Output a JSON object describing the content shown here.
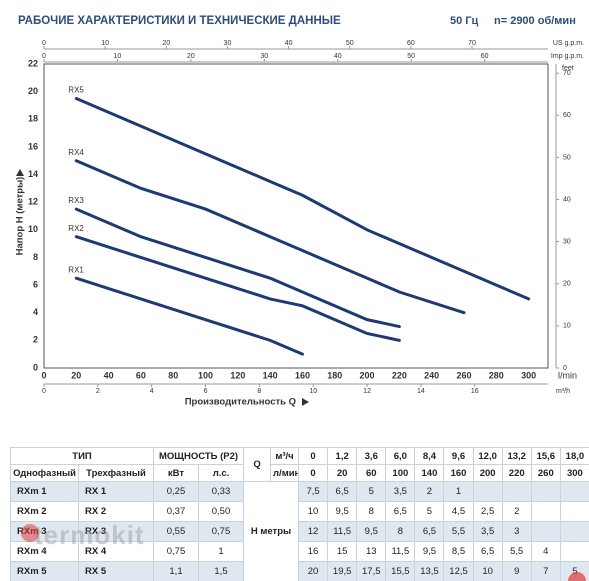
{
  "header": {
    "title": "РАБОЧИЕ ХАРАКТЕРИСТИКИ И ТЕХНИЧЕСКИЕ ДАННЫЕ",
    "frequency": "50 Гц",
    "speed": "n= 2900 об/мин"
  },
  "chart_data": {
    "type": "line",
    "y_label": "Напор H (метры)",
    "x_label": "Производительность Q",
    "x_unit": "l/min",
    "xlim": [
      0,
      312
    ],
    "xticks": [
      0,
      20,
      40,
      60,
      80,
      100,
      120,
      140,
      160,
      180,
      200,
      220,
      240,
      260,
      280,
      300
    ],
    "ylim": [
      0,
      22
    ],
    "yticks": [
      0,
      2,
      4,
      6,
      8,
      10,
      12,
      14,
      16,
      18,
      20,
      22
    ],
    "grid": true,
    "secondary_axes": [
      {
        "label": "US g.p.m.",
        "position": "top",
        "lim": [
          0,
          82.42
        ],
        "ticks": [
          0,
          10,
          20,
          30,
          40,
          50,
          60,
          70
        ]
      },
      {
        "label": "Imp g.p.m.",
        "position": "top",
        "lim": [
          0,
          68.63
        ],
        "ticks": [
          0,
          10,
          20,
          30,
          40,
          50,
          60
        ]
      },
      {
        "label": "m³/h",
        "position": "bottom",
        "lim": [
          0,
          18.72
        ],
        "ticks": [
          0,
          2,
          4,
          6,
          8,
          10,
          12,
          14,
          16
        ]
      },
      {
        "label": "feet",
        "position": "right",
        "lim": [
          0,
          72.18
        ],
        "ticks": [
          0,
          10,
          20,
          30,
          40,
          50,
          60,
          70
        ]
      }
    ],
    "series": [
      {
        "name": "RX5",
        "color": "#1f3a73",
        "x": [
          20,
          60,
          100,
          140,
          160,
          200,
          220,
          260,
          300
        ],
        "values": [
          19.5,
          17.5,
          15.5,
          13.5,
          12.5,
          10,
          9,
          7,
          5
        ]
      },
      {
        "name": "RX4",
        "color": "#1f3a73",
        "x": [
          20,
          60,
          100,
          140,
          160,
          200,
          220,
          260
        ],
        "values": [
          15,
          13,
          11.5,
          9.5,
          8.5,
          6.5,
          5.5,
          4
        ]
      },
      {
        "name": "RX3",
        "color": "#1f3a73",
        "x": [
          20,
          60,
          100,
          140,
          160,
          200,
          220
        ],
        "values": [
          11.5,
          9.5,
          8,
          6.5,
          5.5,
          3.5,
          3
        ]
      },
      {
        "name": "RX2",
        "color": "#1f3a73",
        "x": [
          20,
          60,
          100,
          140,
          160,
          200,
          220
        ],
        "values": [
          9.5,
          8,
          6.5,
          5,
          4.5,
          2.5,
          2
        ]
      },
      {
        "name": "RX1",
        "color": "#1f3a73",
        "x": [
          20,
          60,
          100,
          140,
          160
        ],
        "values": [
          6.5,
          5,
          3.5,
          2,
          1
        ]
      }
    ]
  },
  "table": {
    "header_rows": [
      [
        "ТИП",
        "МОЩНОСТЬ (P2)",
        "Q",
        "м³/ч",
        "0",
        "1,2",
        "3,6",
        "6,0",
        "8,4",
        "9,6",
        "12,0",
        "13,2",
        "15,6",
        "18,0"
      ],
      [
        "Однофазный",
        "Трехфазный",
        "кВт",
        "л.с.",
        "л/мин",
        "0",
        "20",
        "60",
        "100",
        "140",
        "160",
        "200",
        "220",
        "260",
        "300"
      ]
    ],
    "h_label": "H метры",
    "rows": [
      {
        "cells": [
          "RXm 1",
          "RX 1",
          "0,25",
          "0,33"
        ],
        "values": [
          "7,5",
          "6,5",
          "5",
          "3,5",
          "2",
          "1"
        ]
      },
      {
        "cells": [
          "RXm 2",
          "RX 2",
          "0,37",
          "0,50"
        ],
        "values": [
          "10",
          "9,5",
          "8",
          "6,5",
          "5",
          "4,5",
          "2,5",
          "2"
        ]
      },
      {
        "cells": [
          "RXm 3",
          "RX 3",
          "0,55",
          "0,75"
        ],
        "values": [
          "12",
          "11,5",
          "9,5",
          "8",
          "6,5",
          "5,5",
          "3,5",
          "3"
        ]
      },
      {
        "cells": [
          "RXm 4",
          "RX 4",
          "0,75",
          "1"
        ],
        "values": [
          "16",
          "15",
          "13",
          "11,5",
          "9,5",
          "8,5",
          "6,5",
          "5,5",
          "4"
        ]
      },
      {
        "cells": [
          "RXm 5",
          "RX 5",
          "1,1",
          "1,5"
        ],
        "values": [
          "20",
          "19,5",
          "17,5",
          "15,5",
          "13,5",
          "12,5",
          "10",
          "9",
          "7",
          "5"
        ]
      }
    ]
  },
  "watermark": "termokit"
}
